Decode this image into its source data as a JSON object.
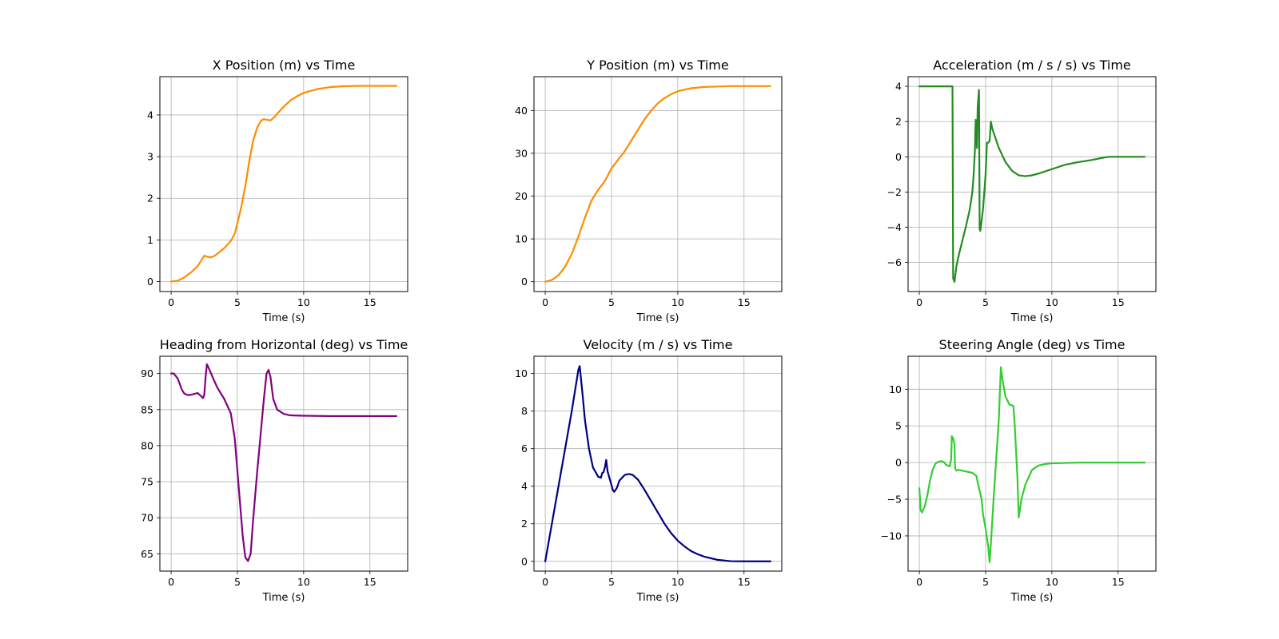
{
  "figure": {
    "background": "#ffffff"
  },
  "chart_data": [
    {
      "type": "line",
      "title": "X Position (m) vs Time",
      "xlabel": "Time (s)",
      "ylabel": "",
      "xlim": [
        -0.85,
        17.85
      ],
      "ylim": [
        -0.24,
        4.92
      ],
      "xticks": [
        0,
        5,
        10,
        15
      ],
      "yticks": [
        0,
        1,
        2,
        3,
        4
      ],
      "grid": true,
      "series": [
        {
          "color": "#ff8c00",
          "points": [
            [
              0,
              0
            ],
            [
              0.5,
              0.02
            ],
            [
              1,
              0.1
            ],
            [
              1.5,
              0.22
            ],
            [
              2,
              0.37
            ],
            [
              2.5,
              0.62
            ],
            [
              2.7,
              0.6
            ],
            [
              3,
              0.58
            ],
            [
              3.3,
              0.62
            ],
            [
              3.6,
              0.7
            ],
            [
              4,
              0.8
            ],
            [
              4.5,
              0.97
            ],
            [
              4.8,
              1.15
            ],
            [
              5,
              1.4
            ],
            [
              5.3,
              1.8
            ],
            [
              5.6,
              2.3
            ],
            [
              5.9,
              2.9
            ],
            [
              6.2,
              3.4
            ],
            [
              6.5,
              3.7
            ],
            [
              6.8,
              3.87
            ],
            [
              7,
              3.9
            ],
            [
              7.3,
              3.88
            ],
            [
              7.5,
              3.87
            ],
            [
              7.8,
              3.95
            ],
            [
              8,
              4.03
            ],
            [
              8.5,
              4.2
            ],
            [
              9,
              4.35
            ],
            [
              9.5,
              4.45
            ],
            [
              10,
              4.53
            ],
            [
              11,
              4.62
            ],
            [
              12,
              4.67
            ],
            [
              13,
              4.69
            ],
            [
              14,
              4.7
            ],
            [
              15,
              4.7
            ],
            [
              16,
              4.7
            ],
            [
              17,
              4.7
            ]
          ]
        }
      ]
    },
    {
      "type": "line",
      "title": "Y Position (m) vs Time",
      "xlabel": "Time (s)",
      "ylabel": "",
      "xlim": [
        -0.85,
        17.85
      ],
      "ylim": [
        -2.3,
        47.9
      ],
      "xticks": [
        0,
        5,
        10,
        15
      ],
      "yticks": [
        0,
        10,
        20,
        30,
        40
      ],
      "grid": true,
      "series": [
        {
          "color": "#ff8c00",
          "points": [
            [
              0,
              0
            ],
            [
              0.5,
              0.4
            ],
            [
              1,
              1.5
            ],
            [
              1.5,
              3.5
            ],
            [
              2,
              6.5
            ],
            [
              2.5,
              10.5
            ],
            [
              3,
              15
            ],
            [
              3.5,
              19
            ],
            [
              4,
              21.5
            ],
            [
              4.5,
              23.5
            ],
            [
              5,
              26.5
            ],
            [
              5.5,
              28.5
            ],
            [
              6,
              30.5
            ],
            [
              6.5,
              33
            ],
            [
              7,
              35.5
            ],
            [
              7.5,
              38
            ],
            [
              8,
              40
            ],
            [
              8.5,
              41.7
            ],
            [
              9,
              42.9
            ],
            [
              9.5,
              43.8
            ],
            [
              10,
              44.5
            ],
            [
              11,
              45.2
            ],
            [
              12,
              45.5
            ],
            [
              13,
              45.6
            ],
            [
              14,
              45.7
            ],
            [
              15,
              45.7
            ],
            [
              16,
              45.7
            ],
            [
              17,
              45.7
            ]
          ]
        }
      ]
    },
    {
      "type": "line",
      "title": "Acceleration (m / s / s) vs Time",
      "xlabel": "Time (s)",
      "ylabel": "",
      "xlim": [
        -0.85,
        17.85
      ],
      "ylim": [
        -7.65,
        4.55
      ],
      "xticks": [
        0,
        5,
        10,
        15
      ],
      "yticks": [
        4,
        2,
        0,
        -2,
        -4,
        -6
      ],
      "grid": true,
      "series": [
        {
          "color": "#228b22",
          "points": [
            [
              0,
              4
            ],
            [
              2.5,
              4
            ],
            [
              2.55,
              -6.9
            ],
            [
              2.65,
              -7.1
            ],
            [
              2.8,
              -6.2
            ],
            [
              3,
              -5.5
            ],
            [
              3.5,
              -4
            ],
            [
              3.8,
              -3
            ],
            [
              4,
              -2
            ],
            [
              4.1,
              -1
            ],
            [
              4.2,
              0.5
            ],
            [
              4.25,
              2.1
            ],
            [
              4.3,
              2
            ],
            [
              4.35,
              0.5
            ],
            [
              4.4,
              2.8
            ],
            [
              4.5,
              3.8
            ],
            [
              4.55,
              -4.1
            ],
            [
              4.6,
              -4.2
            ],
            [
              4.8,
              -3
            ],
            [
              5,
              -1
            ],
            [
              5.1,
              0.8
            ],
            [
              5.2,
              0.8
            ],
            [
              5.3,
              0.9
            ],
            [
              5.4,
              2
            ],
            [
              5.5,
              1.6
            ],
            [
              6,
              0.5
            ],
            [
              6.5,
              -0.3
            ],
            [
              7,
              -0.8
            ],
            [
              7.5,
              -1.05
            ],
            [
              8,
              -1.1
            ],
            [
              8.5,
              -1.05
            ],
            [
              9,
              -0.95
            ],
            [
              10,
              -0.7
            ],
            [
              11,
              -0.45
            ],
            [
              12,
              -0.3
            ],
            [
              13,
              -0.18
            ],
            [
              14,
              -0.03
            ],
            [
              14.3,
              0
            ],
            [
              17,
              0
            ]
          ]
        }
      ]
    },
    {
      "type": "line",
      "title": "Heading from Horizontal (deg) vs Time",
      "xlabel": "Time (s)",
      "ylabel": "",
      "xlim": [
        -0.85,
        17.85
      ],
      "ylim": [
        62.6,
        92.4
      ],
      "xticks": [
        0,
        5,
        10,
        15
      ],
      "yticks": [
        90,
        85,
        80,
        75,
        70,
        65
      ],
      "grid": true,
      "series": [
        {
          "color": "#800080",
          "points": [
            [
              0,
              90
            ],
            [
              0.2,
              90
            ],
            [
              0.5,
              89.3
            ],
            [
              0.8,
              87.8
            ],
            [
              1,
              87.2
            ],
            [
              1.3,
              87
            ],
            [
              1.6,
              87.1
            ],
            [
              2,
              87.3
            ],
            [
              2.3,
              86.8
            ],
            [
              2.4,
              86.6
            ],
            [
              2.5,
              87
            ],
            [
              2.6,
              89.5
            ],
            [
              2.7,
              91.3
            ],
            [
              2.9,
              90.5
            ],
            [
              3.2,
              89.2
            ],
            [
              3.5,
              88
            ],
            [
              4,
              86.5
            ],
            [
              4.5,
              84.5
            ],
            [
              4.8,
              81
            ],
            [
              5,
              76.5
            ],
            [
              5.2,
              72
            ],
            [
              5.4,
              67.5
            ],
            [
              5.6,
              64.5
            ],
            [
              5.8,
              64
            ],
            [
              6,
              65
            ],
            [
              6.2,
              70
            ],
            [
              6.5,
              76.5
            ],
            [
              6.8,
              82.5
            ],
            [
              7,
              86.5
            ],
            [
              7.2,
              90
            ],
            [
              7.35,
              90.5
            ],
            [
              7.5,
              89.5
            ],
            [
              7.7,
              86.5
            ],
            [
              8,
              85
            ],
            [
              8.5,
              84.4
            ],
            [
              9,
              84.2
            ],
            [
              10,
              84.15
            ],
            [
              12,
              84.1
            ],
            [
              14,
              84.1
            ],
            [
              17,
              84.1
            ]
          ]
        }
      ]
    },
    {
      "type": "line",
      "title": "Velocity (m / s) vs Time",
      "xlabel": "Time (s)",
      "ylabel": "",
      "xlim": [
        -0.85,
        17.85
      ],
      "ylim": [
        -0.52,
        10.92
      ],
      "xticks": [
        0,
        5,
        10,
        15
      ],
      "yticks": [
        0,
        2,
        4,
        6,
        8,
        10
      ],
      "grid": true,
      "series": [
        {
          "color": "#000080",
          "points": [
            [
              0,
              0
            ],
            [
              0.5,
              2
            ],
            [
              1,
              4
            ],
            [
              1.5,
              6
            ],
            [
              2,
              8
            ],
            [
              2.5,
              10.2
            ],
            [
              2.6,
              10.4
            ],
            [
              2.8,
              9
            ],
            [
              3,
              7.5
            ],
            [
              3.3,
              6
            ],
            [
              3.6,
              5
            ],
            [
              4,
              4.5
            ],
            [
              4.2,
              4.45
            ],
            [
              4.3,
              4.7
            ],
            [
              4.4,
              4.75
            ],
            [
              4.5,
              5
            ],
            [
              4.6,
              5.4
            ],
            [
              4.7,
              4.8
            ],
            [
              4.9,
              4.3
            ],
            [
              5.1,
              3.8
            ],
            [
              5.2,
              3.7
            ],
            [
              5.4,
              3.9
            ],
            [
              5.6,
              4.3
            ],
            [
              6,
              4.6
            ],
            [
              6.3,
              4.65
            ],
            [
              6.6,
              4.6
            ],
            [
              7,
              4.35
            ],
            [
              7.5,
              3.8
            ],
            [
              8,
              3.2
            ],
            [
              8.5,
              2.6
            ],
            [
              9,
              2
            ],
            [
              9.5,
              1.5
            ],
            [
              10,
              1.1
            ],
            [
              10.5,
              0.8
            ],
            [
              11,
              0.55
            ],
            [
              11.5,
              0.38
            ],
            [
              12,
              0.25
            ],
            [
              13,
              0.08
            ],
            [
              14,
              0.01
            ],
            [
              15,
              0
            ],
            [
              17,
              0
            ]
          ]
        }
      ]
    },
    {
      "type": "line",
      "title": "Steering Angle (deg) vs Time",
      "xlabel": "Time (s)",
      "ylabel": "",
      "xlim": [
        -0.85,
        17.85
      ],
      "ylim": [
        -14.8,
        14.5
      ],
      "xticks": [
        0,
        5,
        10,
        15
      ],
      "yticks": [
        10,
        5,
        0,
        -5,
        -10
      ],
      "grid": true,
      "series": [
        {
          "color": "#32cd32",
          "points": [
            [
              0,
              -3.5
            ],
            [
              0.1,
              -6.5
            ],
            [
              0.2,
              -6.8
            ],
            [
              0.4,
              -6
            ],
            [
              0.6,
              -4.5
            ],
            [
              0.8,
              -2.5
            ],
            [
              1,
              -1
            ],
            [
              1.2,
              -0.2
            ],
            [
              1.4,
              0.1
            ],
            [
              1.7,
              0.2
            ],
            [
              1.9,
              0
            ],
            [
              2,
              -0.3
            ],
            [
              2.3,
              -0.5
            ],
            [
              2.4,
              0.5
            ],
            [
              2.45,
              3.6
            ],
            [
              2.55,
              3.3
            ],
            [
              2.65,
              2.5
            ],
            [
              2.7,
              -0.8
            ],
            [
              2.8,
              -1.1
            ],
            [
              3,
              -1
            ],
            [
              3.5,
              -1.2
            ],
            [
              4,
              -1.4
            ],
            [
              4.3,
              -1.8
            ],
            [
              4.5,
              -3.5
            ],
            [
              4.7,
              -5
            ],
            [
              4.8,
              -7
            ],
            [
              5,
              -9
            ],
            [
              5.2,
              -11.5
            ],
            [
              5.3,
              -13.6
            ],
            [
              5.4,
              -11
            ],
            [
              5.6,
              -5
            ],
            [
              5.8,
              0.5
            ],
            [
              6,
              6
            ],
            [
              6.15,
              13
            ],
            [
              6.3,
              11
            ],
            [
              6.5,
              9
            ],
            [
              6.8,
              7.9
            ],
            [
              7,
              7.8
            ],
            [
              7.1,
              7.7
            ],
            [
              7.2,
              5
            ],
            [
              7.4,
              -2
            ],
            [
              7.5,
              -7.5
            ],
            [
              7.7,
              -5
            ],
            [
              8,
              -3
            ],
            [
              8.5,
              -1
            ],
            [
              9,
              -0.4
            ],
            [
              9.5,
              -0.2
            ],
            [
              10,
              -0.1
            ],
            [
              12,
              0
            ],
            [
              14,
              0
            ],
            [
              17,
              0
            ]
          ]
        }
      ]
    }
  ]
}
